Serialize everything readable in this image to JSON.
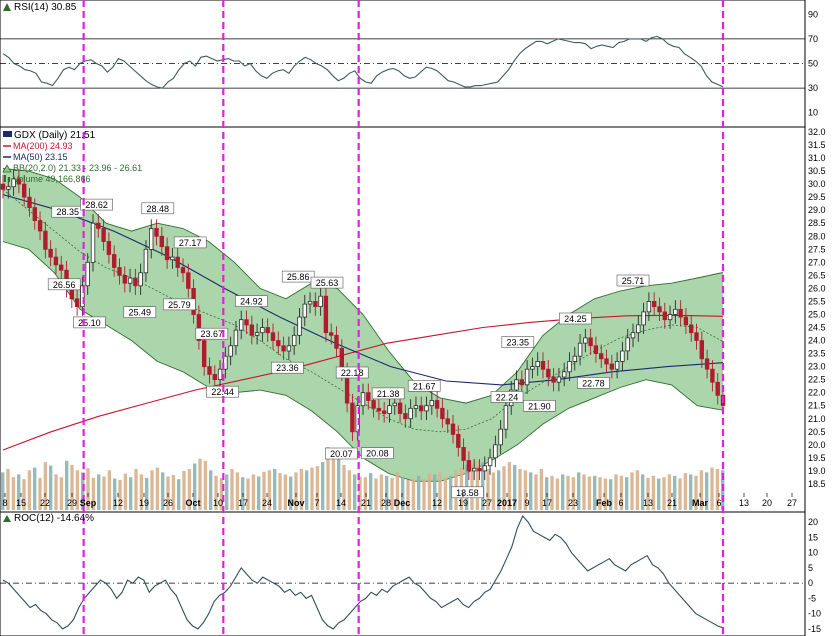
{
  "chart_data": {
    "type": "candlestick",
    "rsi": {
      "title": "RSI(14) 30.85",
      "ylim": [
        0,
        100
      ],
      "ticks": [
        "90",
        "70",
        "50",
        "30",
        "10"
      ],
      "levels": [
        70,
        50,
        30
      ],
      "values": [
        58,
        55,
        50,
        48,
        45,
        44,
        42,
        35,
        34,
        32,
        38,
        45,
        47,
        45,
        50,
        52,
        53,
        50,
        48,
        43,
        47,
        54,
        52,
        48,
        44,
        40,
        36,
        33,
        31,
        30,
        35,
        38,
        45,
        50,
        52,
        48,
        55,
        56,
        54,
        52,
        53,
        54,
        52,
        52,
        48,
        50,
        44,
        40,
        38,
        42,
        44,
        45,
        42,
        48,
        52,
        55,
        53,
        50,
        48,
        45,
        40,
        36,
        38,
        42,
        44,
        38,
        35,
        34,
        40,
        43,
        45,
        46,
        44,
        40,
        38,
        39,
        43,
        47,
        46,
        44,
        40,
        36,
        35,
        33,
        31,
        31,
        32,
        32,
        33,
        34,
        35,
        40,
        45,
        52,
        58,
        62,
        65,
        68,
        68,
        66,
        68,
        70,
        69,
        68,
        67,
        67,
        66,
        62,
        64,
        65,
        64,
        63,
        67,
        68,
        70,
        70,
        70,
        68,
        71,
        72,
        70,
        66,
        64,
        63,
        58,
        55,
        52,
        48,
        40,
        35,
        33,
        31
      ]
    },
    "price": {
      "title": "GDX (Daily) 21.51",
      "ylim": [
        17.5,
        32.0
      ],
      "ticks": [
        "32.0",
        "31.5",
        "31.0",
        "30.5",
        "30.0",
        "29.5",
        "29.0",
        "28.5",
        "28.0",
        "27.5",
        "27.0",
        "26.5",
        "26.0",
        "25.5",
        "25.0",
        "24.5",
        "24.0",
        "23.5",
        "23.0",
        "22.5",
        "22.0",
        "21.5",
        "21.0",
        "20.5",
        "20.0",
        "19.5",
        "19.0",
        "18.5"
      ],
      "legend": [
        {
          "label": "MA(200) 24.93",
          "color": "#c8142d"
        },
        {
          "label": "MA(50) 23.15",
          "color": "#1c2a6b"
        },
        {
          "label": "BB(20,2.0) 21.33 - 23.96 - 26.61",
          "color": "#2d6e2d"
        },
        {
          "label": "Volume 49,166,866",
          "color": "#2d6e2d"
        }
      ],
      "close": [
        29.8,
        29.9,
        30.2,
        30.0,
        29.5,
        29.1,
        28.6,
        28.2,
        27.5,
        27.2,
        26.9,
        26.7,
        26.0,
        25.6,
        25.3,
        26.1,
        27.0,
        28.5,
        28.3,
        27.8,
        27.3,
        26.8,
        26.5,
        26.2,
        26.4,
        26.1,
        26.6,
        27.5,
        28.3,
        28.0,
        27.6,
        27.1,
        27.2,
        26.8,
        26.6,
        26.0,
        25.0,
        24.0,
        23.0,
        22.7,
        22.5,
        22.9,
        23.4,
        23.8,
        24.4,
        24.8,
        24.6,
        24.2,
        24.3,
        24.5,
        24.3,
        24.0,
        23.8,
        23.6,
        23.8,
        24.2,
        24.9,
        25.4,
        25.5,
        25.3,
        25.7,
        24.3,
        24.2,
        23.7,
        22.8,
        21.6,
        20.5,
        21.5,
        22.0,
        21.7,
        21.4,
        21.3,
        21.2,
        21.5,
        21.6,
        21.2,
        21.0,
        21.4,
        21.5,
        21.3,
        21.5,
        21.7,
        21.4,
        21.0,
        20.8,
        20.4,
        19.9,
        19.4,
        19.0,
        19.1,
        19.0,
        19.2,
        19.5,
        20.0,
        20.6,
        21.5,
        22.1,
        22.5,
        22.3,
        22.9,
        23.0,
        23.2,
        22.9,
        22.6,
        22.4,
        22.6,
        22.8,
        23.2,
        23.4,
        23.9,
        24.1,
        23.8,
        23.5,
        23.3,
        23.1,
        22.9,
        23.2,
        23.6,
        24.1,
        24.3,
        24.6,
        25.1,
        25.5,
        25.3,
        25.1,
        24.8,
        25.0,
        25.2,
        24.9,
        24.6,
        24.3,
        24.0,
        23.3,
        22.9,
        22.4,
        21.9,
        21.51
      ],
      "ma200": [
        19.8,
        20.5,
        21.1,
        21.6,
        22.1,
        22.5,
        22.9,
        23.4,
        23.9,
        24.2,
        24.5,
        24.7,
        24.85,
        24.95,
        24.97,
        24.93
      ],
      "ma50": [
        29.6,
        29.0,
        28.2,
        27.2,
        26.0,
        24.9,
        23.9,
        23.0,
        22.45,
        22.3,
        22.5,
        22.8,
        23.0,
        23.15
      ],
      "bb_mid": [
        29.8,
        29.0,
        28.2,
        27.4,
        26.8,
        26.4,
        25.9,
        25.4,
        25.0,
        24.6,
        24.0,
        23.3,
        22.8,
        22.2,
        21.6,
        21.0,
        20.6,
        20.5,
        20.6,
        21.0,
        21.8,
        22.4,
        23.0,
        23.6,
        24.1,
        24.4,
        24.6,
        24.5,
        23.96
      ],
      "bb_upper": [
        30.6,
        30.5,
        30.2,
        29.5,
        28.5,
        28.2,
        28.5,
        28.3,
        27.8,
        27.0,
        26.0,
        25.6,
        26.2,
        26.0,
        25.0,
        23.6,
        22.4,
        21.8,
        21.6,
        21.9,
        22.8,
        24.2,
        25.0,
        25.6,
        25.9,
        26.1,
        26.2,
        26.4,
        26.61
      ],
      "bb_lower": [
        27.8,
        27.5,
        26.6,
        25.2,
        24.6,
        24.0,
        23.2,
        22.8,
        22.2,
        22.0,
        22.1,
        21.9,
        21.3,
        20.5,
        19.5,
        18.9,
        18.6,
        18.6,
        18.9,
        19.4,
        20.0,
        20.8,
        21.4,
        21.8,
        22.2,
        22.5,
        22.3,
        21.5,
        21.33
      ],
      "annotations": [
        "28.35",
        "28.62",
        "28.48",
        "27.17",
        "26.56",
        "25.10",
        "25.49",
        "25.79",
        "23.67",
        "22.44",
        "24.92",
        "25.86",
        "25.63",
        "23.36",
        "22.18",
        "20.07",
        "21.38",
        "20.08",
        "21.67",
        "18.58",
        "23.35",
        "22.24",
        "21.90",
        "24.25",
        "22.78",
        "25.71"
      ],
      "vertical_markers": [
        "Aug 29",
        "Oct 10",
        "Nov 15",
        "Mar 6"
      ]
    },
    "volume": [
      55,
      60,
      48,
      52,
      45,
      58,
      62,
      47,
      70,
      65,
      52,
      48,
      72,
      66,
      58,
      55,
      61,
      47,
      52,
      49,
      58,
      46,
      44,
      53,
      48,
      60,
      52,
      47,
      58,
      62,
      55,
      49,
      51,
      45,
      57,
      60,
      68,
      75,
      72,
      58,
      50,
      47,
      52,
      60,
      55,
      48,
      46,
      52,
      49,
      56,
      58,
      60,
      54,
      52,
      49,
      55,
      60,
      58,
      62,
      64,
      70,
      92,
      80,
      85,
      66,
      58,
      52,
      49,
      48,
      54,
      46,
      52,
      50,
      47,
      55,
      48,
      44,
      45,
      50,
      46,
      54,
      52,
      56,
      48,
      50,
      58,
      62,
      66,
      68,
      72,
      70,
      60,
      55,
      58,
      64,
      70,
      66,
      60,
      58,
      55,
      52,
      60,
      48,
      50,
      46,
      52,
      50,
      48,
      55,
      52,
      49,
      50,
      48,
      46,
      45,
      52,
      50,
      48,
      55,
      58,
      52,
      47,
      50,
      46,
      48,
      52,
      50,
      46,
      54,
      52,
      50,
      58,
      55,
      62,
      60,
      58
    ],
    "roc": {
      "title": "ROC(12) -14.64%",
      "ylim": [
        -16,
        22
      ],
      "ticks": [
        "20",
        "15",
        "10",
        "5",
        "0",
        "-5",
        "-10",
        "-15"
      ],
      "values": [
        1,
        0,
        -2,
        -4,
        -6,
        -8,
        -7,
        -9,
        -10,
        -12,
        -13,
        -15,
        -14,
        -12,
        -8,
        -5,
        -3,
        -1,
        1,
        0,
        -2,
        -5,
        -3,
        1,
        0,
        2,
        1,
        -3,
        -1,
        0,
        1,
        -2,
        -4,
        -8,
        -12,
        -14,
        -15,
        -13,
        -10,
        -6,
        -4,
        -3,
        -1,
        2,
        5,
        3,
        1,
        0,
        2,
        1,
        0,
        -1,
        -3,
        -2,
        -4,
        -3,
        -5,
        -4,
        -8,
        -12,
        -14,
        -15,
        -13,
        -12,
        -10,
        -8,
        -6,
        -5,
        -3,
        -4,
        -2,
        -3,
        -1,
        0,
        1,
        2,
        0,
        -1,
        -3,
        -5,
        -6,
        -8,
        -7,
        -6,
        -5,
        -7,
        -8,
        -6,
        -5,
        -3,
        -2,
        1,
        4,
        8,
        12,
        18,
        22,
        20,
        17,
        16,
        15,
        14,
        16,
        15,
        13,
        10,
        8,
        6,
        4,
        5,
        6,
        7,
        8,
        6,
        5,
        4,
        6,
        7,
        8,
        9,
        6,
        5,
        3,
        0,
        -2,
        -4,
        -6,
        -8,
        -10,
        -11,
        -12,
        -13,
        -14,
        -14.64
      ]
    },
    "x_axis": {
      "tick_labels": [
        "8",
        "15",
        "22",
        "29",
        "Sep",
        "12",
        "19",
        "26",
        "Oct",
        "10",
        "17",
        "24",
        "Nov",
        "7",
        "14",
        "21",
        "28",
        "Dec",
        "12",
        "19",
        "27",
        "2017",
        "9",
        "17",
        "23",
        "Feb",
        "6",
        "13",
        "21",
        "Mar",
        "6",
        "13",
        "20",
        "27"
      ],
      "bold": [
        "Sep",
        "Oct",
        "Nov",
        "Dec",
        "2017",
        "Feb",
        "Mar"
      ]
    },
    "colors": {
      "up": "#2a2a2a",
      "down": "#b01c2e",
      "bb_fill": "#8fc88f",
      "bb_line": "#2d6e2d",
      "ma200": "#c8142d",
      "ma50": "#1c2a6b",
      "rsi_line": "#3b5d5d",
      "roc_line": "#2f4f5a",
      "marker": "#e020e0",
      "vol_a": "#d9b08c",
      "vol_b": "#8fb3b3"
    }
  }
}
